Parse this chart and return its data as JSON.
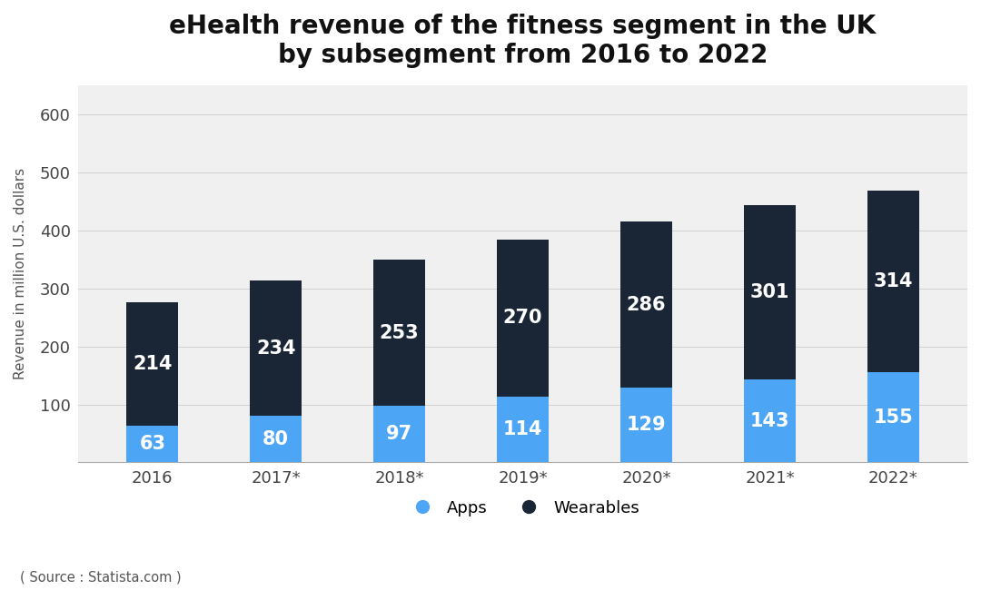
{
  "title": "eHealth revenue of the fitness segment in the UK\nby subsegment from 2016 to 2022",
  "xlabel": "",
  "ylabel": "Revenue in million U.S. dollars",
  "source": "( Source : Statista.com )",
  "categories": [
    "2016",
    "2017*",
    "2018*",
    "2019*",
    "2020*",
    "2021*",
    "2022*"
  ],
  "apps_values": [
    63,
    80,
    97,
    114,
    129,
    143,
    155
  ],
  "wearables_values": [
    214,
    234,
    253,
    270,
    286,
    301,
    314
  ],
  "apps_color": "#4da6f5",
  "wearables_color": "#1a2535",
  "background_color": "#ffffff",
  "plot_bg_color": "#f0f0f0",
  "ylim": [
    0,
    650
  ],
  "yticks": [
    0,
    100,
    200,
    300,
    400,
    500,
    600
  ],
  "grid_color": "#d0d0d0",
  "title_fontsize": 20,
  "label_fontsize": 11,
  "tick_fontsize": 13,
  "bar_label_fontsize": 15,
  "legend_fontsize": 13,
  "bar_width": 0.42
}
